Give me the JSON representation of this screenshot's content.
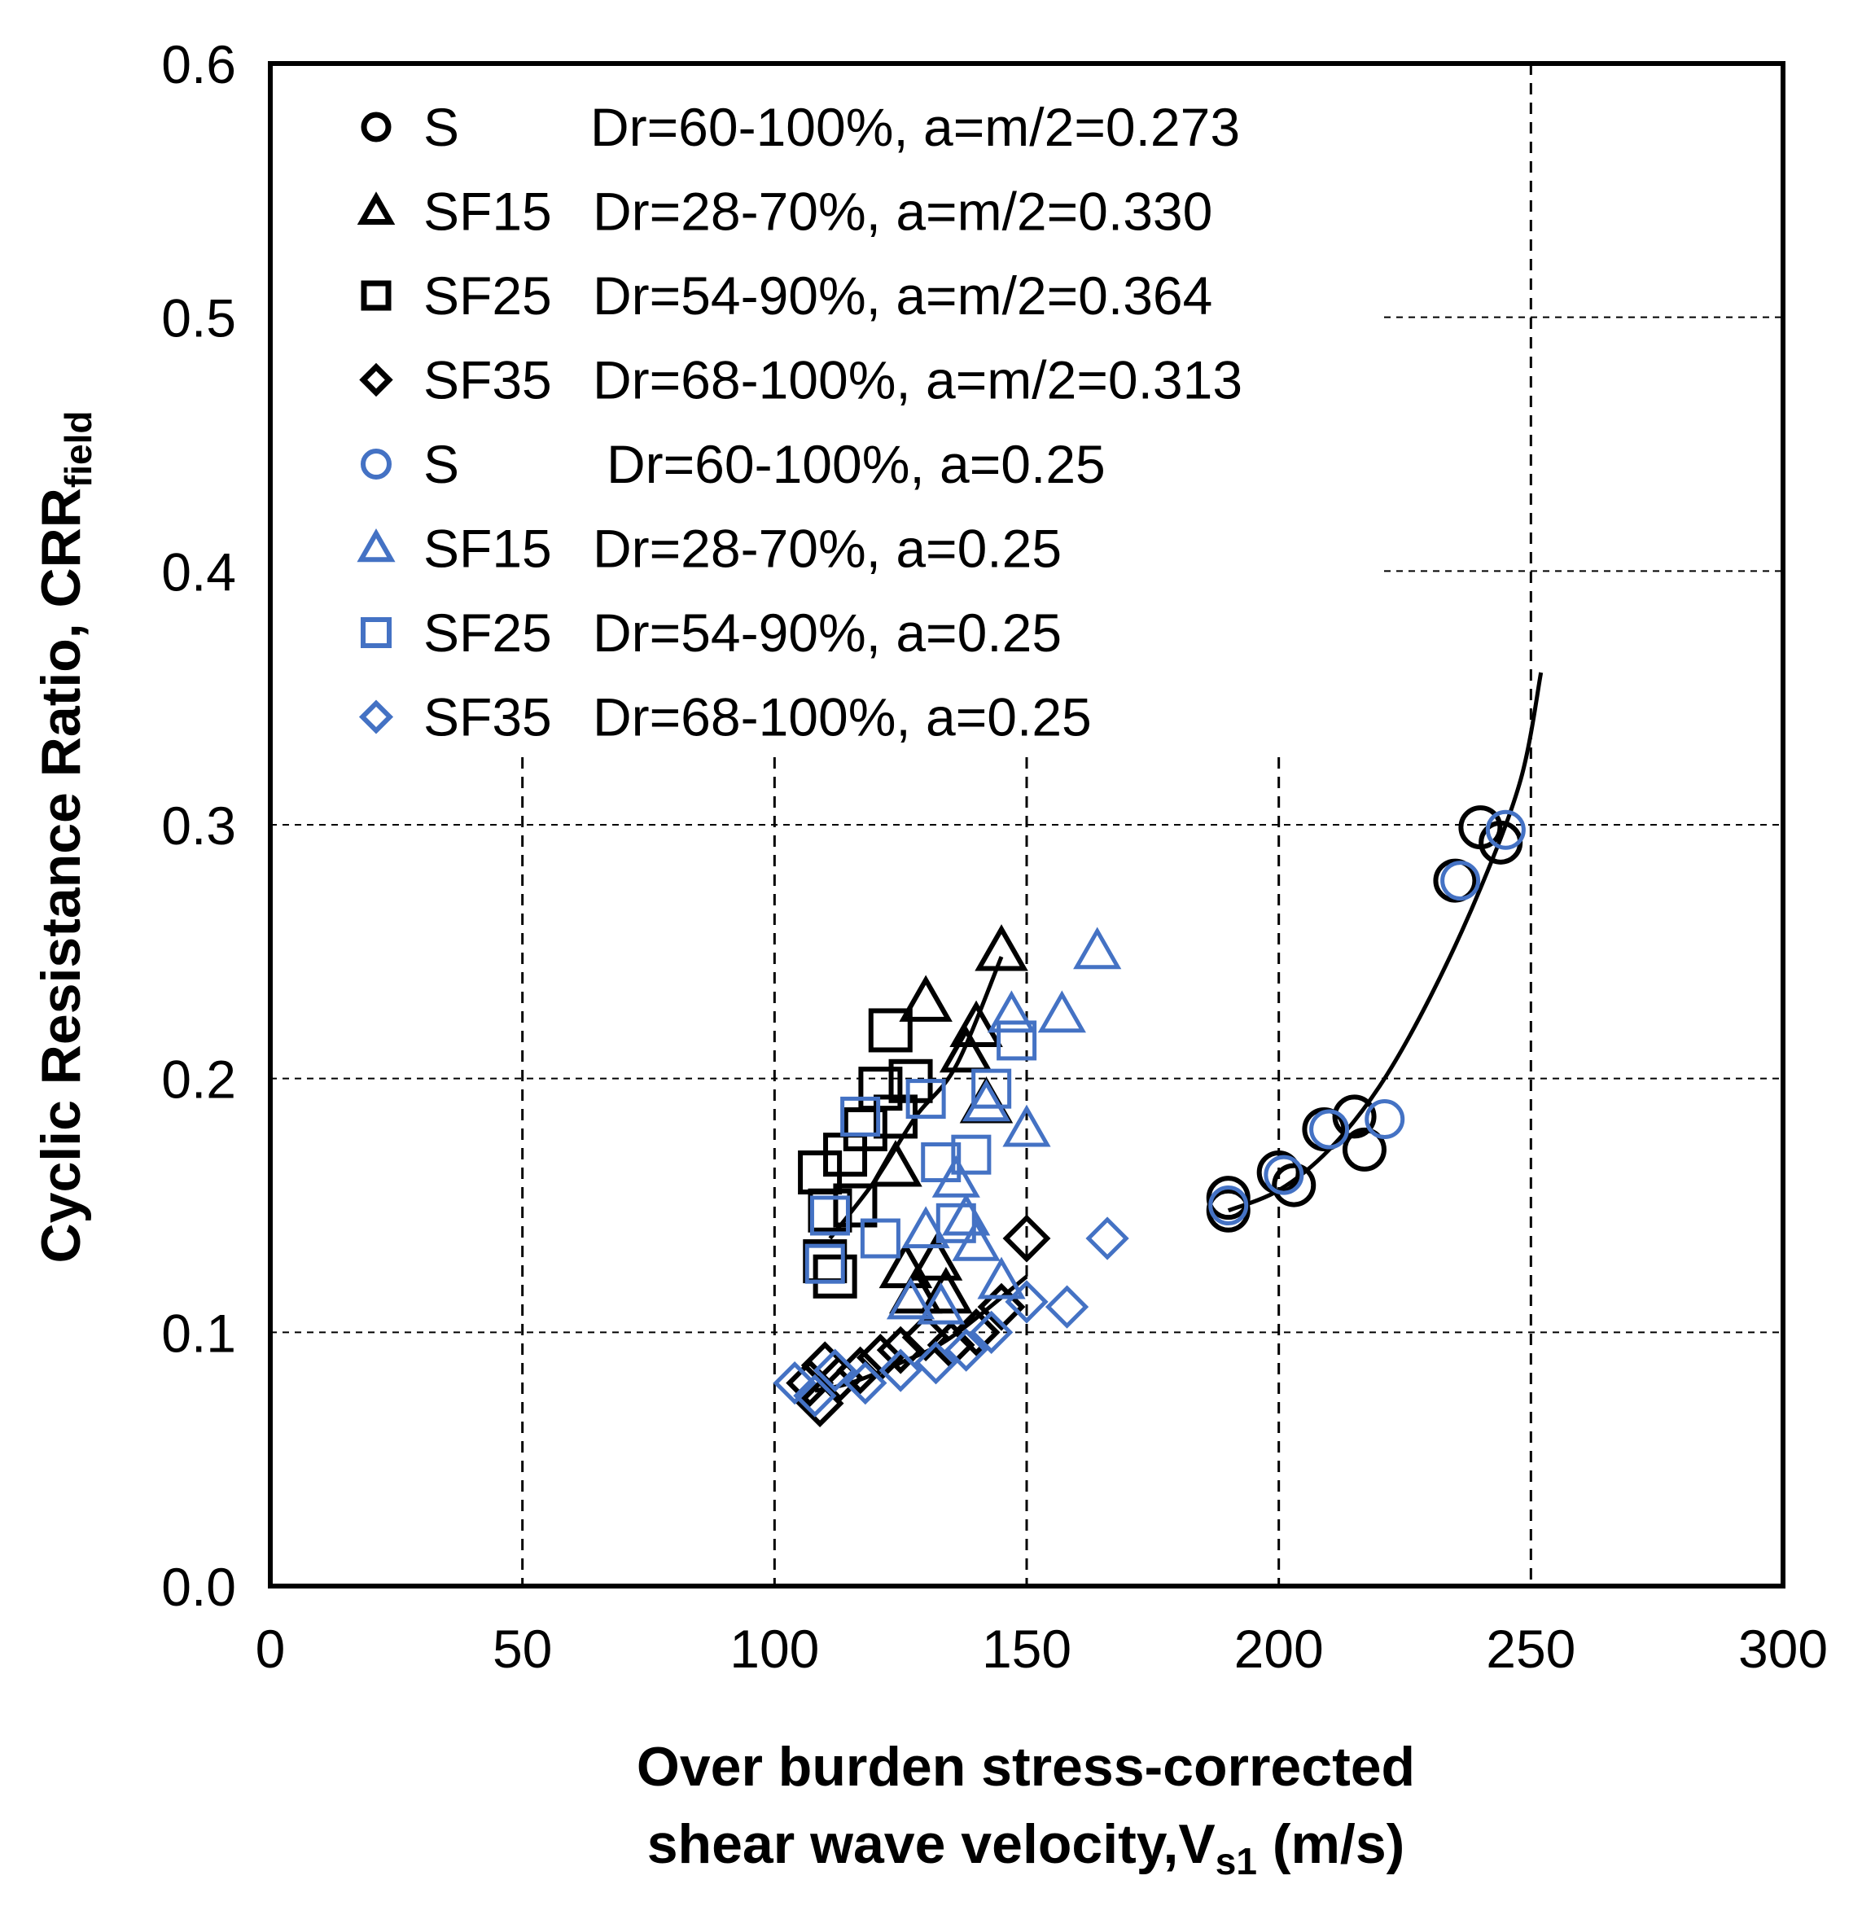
{
  "chart_data": {
    "type": "scatter",
    "title": "",
    "xlabel": {
      "line1": "Over burden stress-corrected",
      "line2_prefix": "shear wave velocity,V",
      "line2_sub": "s1",
      "line2_suffix": " (m/s)"
    },
    "ylabel": {
      "main": "Cyclic Resistance Ratio, CRR",
      "sub": "field"
    },
    "xlim": [
      0,
      300
    ],
    "ylim": [
      0,
      0.6
    ],
    "x_ticks": [
      "0",
      "50",
      "100",
      "150",
      "200",
      "250",
      "300"
    ],
    "y_ticks": [
      "0.0",
      "0.1",
      "0.2",
      "0.3",
      "0.4",
      "0.5",
      "0.6"
    ],
    "grid": "dashed",
    "legend_position": "top-left",
    "legend": [
      {
        "marker": "circle",
        "color": "#000000",
        "name": "S",
        "desc": "Dr=60-100%, a=m/2=0.273"
      },
      {
        "marker": "triangle",
        "color": "#000000",
        "name": "SF15",
        "desc": "Dr=28-70%, a=m/2=0.330"
      },
      {
        "marker": "square",
        "color": "#000000",
        "name": "SF25",
        "desc": "Dr=54-90%, a=m/2=0.364"
      },
      {
        "marker": "diamond",
        "color": "#000000",
        "name": "SF35",
        "desc": "Dr=68-100%, a=m/2=0.313"
      },
      {
        "marker": "circle",
        "color": "#4472C4",
        "name": "S",
        "desc": "Dr=60-100%, a=0.25"
      },
      {
        "marker": "triangle",
        "color": "#4472C4",
        "name": "SF15",
        "desc": "Dr=28-70%, a=0.25"
      },
      {
        "marker": "square",
        "color": "#4472C4",
        "name": "SF25",
        "desc": "Dr=54-90%, a=0.25"
      },
      {
        "marker": "diamond",
        "color": "#4472C4",
        "name": "SF35",
        "desc": "Dr=68-100%, a=0.25"
      }
    ],
    "series": [
      {
        "name": "S black",
        "marker": "circle",
        "color": "#000000",
        "points": [
          [
            190,
            0.153
          ],
          [
            190,
            0.148
          ],
          [
            200,
            0.163
          ],
          [
            203,
            0.158
          ],
          [
            209,
            0.18
          ],
          [
            215,
            0.185
          ],
          [
            217,
            0.172
          ],
          [
            235,
            0.278
          ],
          [
            240,
            0.299
          ],
          [
            244,
            0.293
          ]
        ]
      },
      {
        "name": "SF15 black",
        "marker": "triangle",
        "color": "#000000",
        "points": [
          [
            124,
            0.165
          ],
          [
            126,
            0.125
          ],
          [
            128,
            0.115
          ],
          [
            130,
            0.23
          ],
          [
            132,
            0.128
          ],
          [
            134,
            0.115
          ],
          [
            138,
            0.21
          ],
          [
            140,
            0.22
          ],
          [
            142,
            0.19
          ],
          [
            145,
            0.25
          ]
        ]
      },
      {
        "name": "SF25 black",
        "marker": "square",
        "color": "#000000",
        "points": [
          [
            109,
            0.163
          ],
          [
            110,
            0.128
          ],
          [
            111,
            0.148
          ],
          [
            112,
            0.122
          ],
          [
            114,
            0.17
          ],
          [
            116,
            0.15
          ],
          [
            118,
            0.18
          ],
          [
            121,
            0.196
          ],
          [
            123,
            0.219
          ],
          [
            124,
            0.185
          ],
          [
            127,
            0.199
          ]
        ]
      },
      {
        "name": "SF35 black",
        "marker": "diamond",
        "color": "#000000",
        "points": [
          [
            107,
            0.08
          ],
          [
            109,
            0.072
          ],
          [
            110,
            0.087
          ],
          [
            113,
            0.082
          ],
          [
            117,
            0.085
          ],
          [
            121,
            0.09
          ],
          [
            125,
            0.093
          ],
          [
            130,
            0.098
          ],
          [
            135,
            0.095
          ],
          [
            140,
            0.1
          ],
          [
            145,
            0.11
          ],
          [
            150,
            0.137
          ]
        ]
      },
      {
        "name": "S blue",
        "marker": "circle",
        "color": "#4472C4",
        "points": [
          [
            190,
            0.15
          ],
          [
            201,
            0.162
          ],
          [
            210,
            0.18
          ],
          [
            221,
            0.184
          ],
          [
            236,
            0.278
          ],
          [
            245,
            0.298
          ]
        ]
      },
      {
        "name": "SF15 blue",
        "marker": "triangle",
        "color": "#4472C4",
        "points": [
          [
            127,
            0.112
          ],
          [
            130,
            0.14
          ],
          [
            133,
            0.11
          ],
          [
            136,
            0.16
          ],
          [
            138,
            0.145
          ],
          [
            140,
            0.135
          ],
          [
            142,
            0.19
          ],
          [
            145,
            0.12
          ],
          [
            147,
            0.225
          ],
          [
            150,
            0.18
          ],
          [
            157,
            0.225
          ],
          [
            164,
            0.25
          ]
        ]
      },
      {
        "name": "SF25 blue",
        "marker": "square",
        "color": "#4472C4",
        "points": [
          [
            110,
            0.127
          ],
          [
            111,
            0.146
          ],
          [
            117,
            0.185
          ],
          [
            121,
            0.137
          ],
          [
            130,
            0.192
          ],
          [
            133,
            0.167
          ],
          [
            136,
            0.143
          ],
          [
            139,
            0.17
          ],
          [
            143,
            0.196
          ],
          [
            148,
            0.215
          ]
        ]
      },
      {
        "name": "SF35 blue",
        "marker": "diamond",
        "color": "#4472C4",
        "points": [
          [
            104,
            0.08
          ],
          [
            108,
            0.075
          ],
          [
            112,
            0.085
          ],
          [
            118,
            0.08
          ],
          [
            125,
            0.085
          ],
          [
            132,
            0.088
          ],
          [
            138,
            0.093
          ],
          [
            143,
            0.1
          ],
          [
            150,
            0.112
          ],
          [
            158,
            0.11
          ],
          [
            166,
            0.137
          ]
        ]
      }
    ],
    "fit_curves": [
      {
        "color": "#000000",
        "points": [
          [
            190,
            0.148
          ],
          [
            200,
            0.156
          ],
          [
            210,
            0.172
          ],
          [
            220,
            0.197
          ],
          [
            230,
            0.232
          ],
          [
            240,
            0.275
          ],
          [
            248,
            0.318
          ],
          [
            252,
            0.36
          ]
        ]
      },
      {
        "color": "#000000",
        "points": [
          [
            111,
            0.137
          ],
          [
            120,
            0.16
          ],
          [
            128,
            0.185
          ],
          [
            136,
            0.205
          ],
          [
            145,
            0.248
          ]
        ]
      },
      {
        "color": "#000000",
        "points": [
          [
            108,
            0.077
          ],
          [
            115,
            0.08
          ],
          [
            125,
            0.088
          ],
          [
            135,
            0.098
          ],
          [
            150,
            0.122
          ]
        ]
      }
    ]
  }
}
